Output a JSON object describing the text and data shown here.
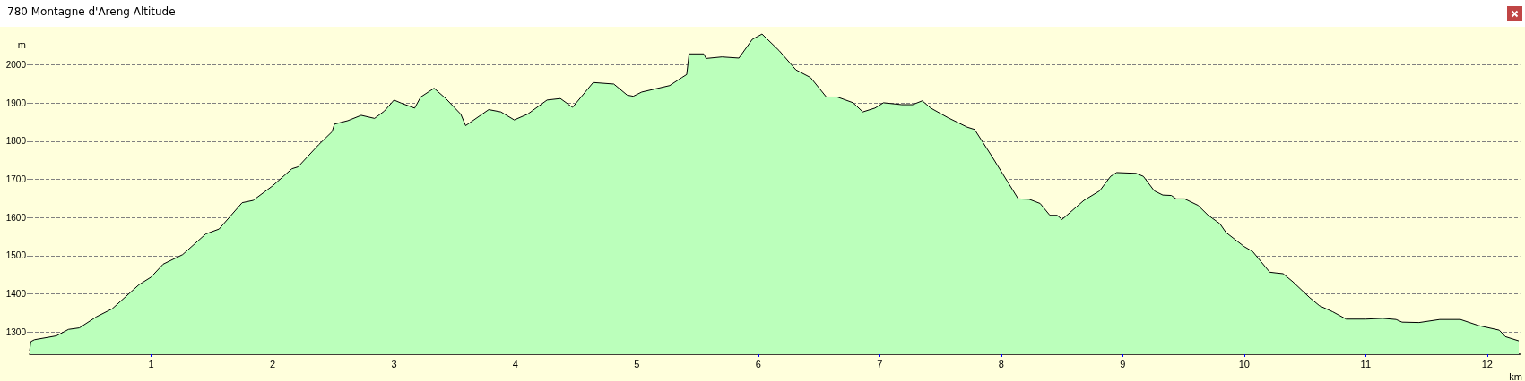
{
  "chart_data": {
    "type": "area",
    "title": "780 Montagne d'Areng Altitude",
    "xlabel": "km",
    "ylabel": "m",
    "x": [
      0,
      0.01,
      0.04,
      0.22,
      0.32,
      0.41,
      0.55,
      0.68,
      0.9,
      1.0,
      1.1,
      1.26,
      1.45,
      1.56,
      1.75,
      1.84,
      2.0,
      2.16,
      2.21,
      2.38,
      2.49,
      2.51,
      2.62,
      2.73,
      2.84,
      2.92,
      3.0,
      3.06,
      3.17,
      3.22,
      3.33,
      3.43,
      3.55,
      3.59,
      3.78,
      3.88,
      3.99,
      4.1,
      4.26,
      4.37,
      4.47,
      4.64,
      4.81,
      4.92,
      4.97,
      5.04,
      5.27,
      5.37,
      5.41,
      5.43,
      5.55,
      5.57,
      5.7,
      5.84,
      5.95,
      6.03,
      6.17,
      6.31,
      6.43,
      6.56,
      6.65,
      6.78,
      6.86,
      6.96,
      7.03,
      7.18,
      7.27,
      7.35,
      7.42,
      7.56,
      7.72,
      7.78,
      7.92,
      8.05,
      8.14,
      8.23,
      8.32,
      8.4,
      8.46,
      8.5,
      8.68,
      8.81,
      8.9,
      8.95,
      9.11,
      9.17,
      9.26,
      9.33,
      9.4,
      9.44,
      9.51,
      9.62,
      9.7,
      9.8,
      9.85,
      10.0,
      10.07,
      10.21,
      10.26,
      10.32,
      10.4,
      10.54,
      10.62,
      10.73,
      10.84,
      11.0,
      11.14,
      11.25,
      11.3,
      11.44,
      11.61,
      11.78,
      11.93,
      12.1,
      12.15,
      12.26
    ],
    "series": [
      {
        "color": "#bbffbb",
        "values": [
          1250,
          1275,
          1280,
          1290,
          1307,
          1311,
          1340,
          1361,
          1424,
          1444,
          1478,
          1503,
          1557,
          1570,
          1639,
          1645,
          1683,
          1728,
          1733,
          1791,
          1825,
          1845,
          1854,
          1868,
          1860,
          1879,
          1908,
          1900,
          1887,
          1916,
          1939,
          1911,
          1871,
          1841,
          1883,
          1877,
          1856,
          1871,
          1908,
          1912,
          1889,
          1954,
          1950,
          1921,
          1918,
          1929,
          1946,
          1967,
          1975,
          2029,
          2029,
          2017,
          2021,
          2018,
          2067,
          2081,
          2038,
          1987,
          1967,
          1916,
          1916,
          1901,
          1877,
          1887,
          1901,
          1896,
          1896,
          1906,
          1887,
          1862,
          1837,
          1831,
          1762,
          1695,
          1649,
          1648,
          1637,
          1606,
          1606,
          1595,
          1645,
          1670,
          1708,
          1718,
          1716,
          1708,
          1670,
          1659,
          1658,
          1649,
          1649,
          1632,
          1607,
          1584,
          1561,
          1524,
          1511,
          1457,
          1455,
          1453,
          1432,
          1390,
          1369,
          1353,
          1334,
          1334,
          1336,
          1333,
          1326,
          1325,
          1333,
          1333,
          1317,
          1305,
          1288,
          1277
        ]
      }
    ],
    "xlim": [
      0,
      12.27
    ],
    "xticks": [
      1,
      2,
      3,
      4,
      5,
      6,
      7,
      8,
      9,
      10,
      11,
      12
    ],
    "ylim": [
      1242,
      2100
    ],
    "yticks": [
      1300,
      1400,
      1500,
      1600,
      1700,
      1800,
      1900,
      2000
    ],
    "grid": "y",
    "marker": "none",
    "line_style": "solid"
  }
}
